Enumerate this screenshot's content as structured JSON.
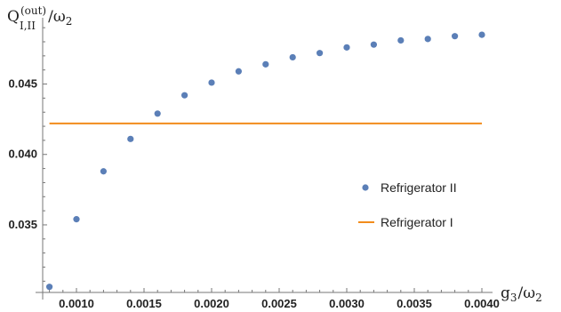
{
  "chart_data": {
    "type": "scatter",
    "xlabel": {
      "main": "g",
      "sub": "3",
      "slash": "/",
      "denom": "ω",
      "denom_sub": "2"
    },
    "ylabel": {
      "main": "Q",
      "sub": "I,II",
      "sup": "(out)",
      "slash": "/",
      "denom": "ω",
      "denom_sub": "2"
    },
    "xlim": [
      0.00075,
      0.004
    ],
    "ylim": [
      0.0302,
      0.0492
    ],
    "x_ticks": [
      0.001,
      0.0015,
      0.002,
      0.0025,
      0.003,
      0.0035,
      0.004
    ],
    "x_tick_labels": [
      "0.0010",
      "0.0015",
      "0.0020",
      "0.0025",
      "0.0030",
      "0.0035",
      "0.0040"
    ],
    "y_ticks": [
      0.035,
      0.04,
      0.045
    ],
    "y_tick_labels": [
      "0.035",
      "0.040",
      "0.045"
    ],
    "series": [
      {
        "name": "Refrigerator II",
        "kind": "points",
        "color": "#5b7fb7",
        "x": [
          0.0008,
          0.001,
          0.0012,
          0.0014,
          0.0016,
          0.0018,
          0.002,
          0.0022,
          0.0024,
          0.0026,
          0.0028,
          0.003,
          0.0032,
          0.0034,
          0.0036,
          0.0038,
          0.004
        ],
        "y": [
          0.0306,
          0.0354,
          0.0388,
          0.0411,
          0.0429,
          0.0442,
          0.0451,
          0.0459,
          0.0464,
          0.0469,
          0.0472,
          0.0476,
          0.0478,
          0.0481,
          0.0482,
          0.0484,
          0.0485
        ]
      },
      {
        "name": "Refrigerator I",
        "kind": "line",
        "color": "#f28c1c",
        "x": [
          0.0008,
          0.004
        ],
        "y": [
          0.0422,
          0.0422
        ]
      }
    ],
    "legend_position": "right-middle",
    "grid": false
  }
}
